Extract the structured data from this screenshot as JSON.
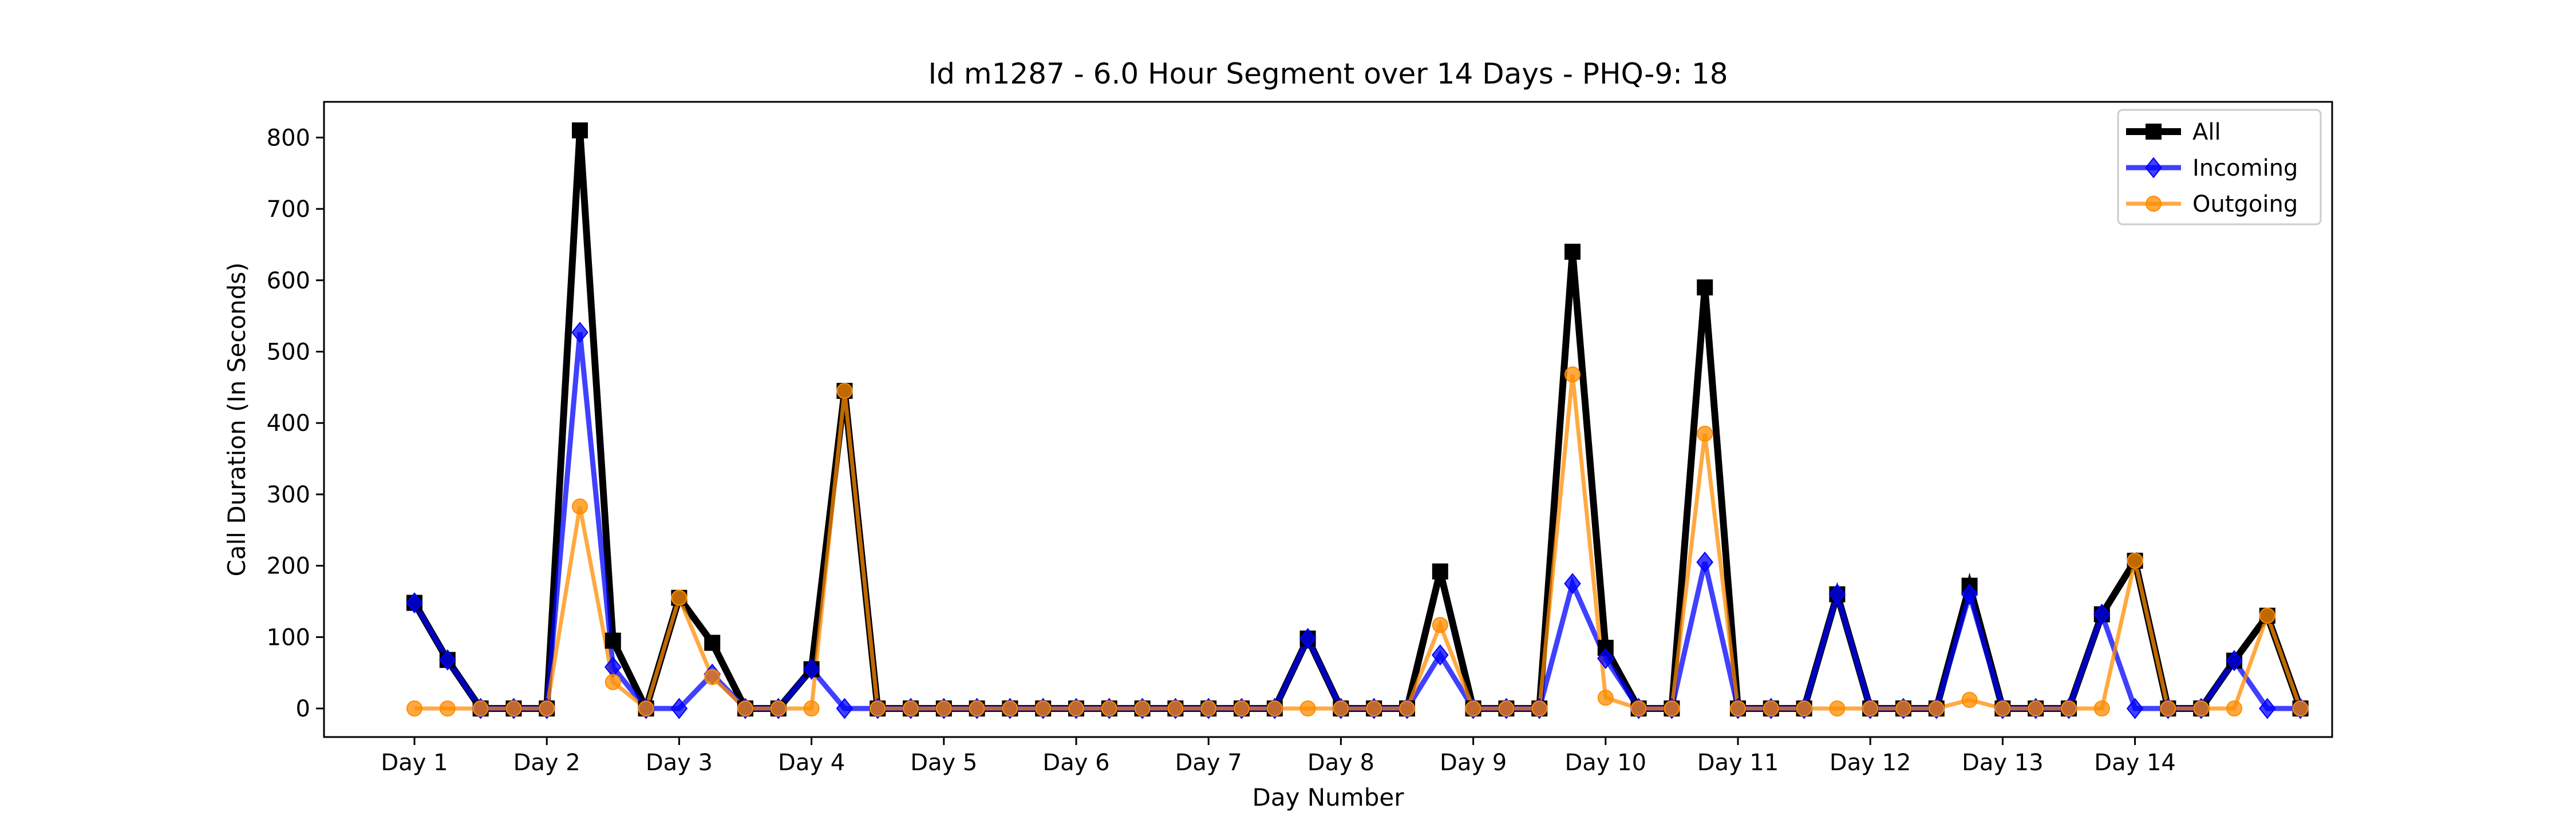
{
  "chart_data": {
    "type": "line",
    "title": "Id m1287 - 6.0 Hour Segment over 14 Days - PHQ-9: 18",
    "xlabel": "Day Number",
    "ylabel": "Call Duration (In Seconds)",
    "ylim": [
      -40,
      850
    ],
    "yticks": [
      0,
      100,
      200,
      300,
      400,
      500,
      600,
      700,
      800
    ],
    "xticks": [
      "Day 1",
      "Day 2",
      "Day 3",
      "Day 4",
      "Day 5",
      "Day 6",
      "Day 7",
      "Day 8",
      "Day 9",
      "Day 10",
      "Day 11",
      "Day 12",
      "Day 13",
      "Day 14"
    ],
    "points_per_day": 4,
    "legend_position": "top-right",
    "grid": false,
    "series": [
      {
        "name": "All",
        "color": "#000000",
        "marker": "square",
        "values": [
          148,
          68,
          0,
          0,
          0,
          810,
          95,
          0,
          155,
          92,
          0,
          0,
          55,
          445,
          0,
          0,
          0,
          0,
          0,
          0,
          0,
          0,
          0,
          0,
          0,
          0,
          0,
          98,
          0,
          0,
          0,
          192,
          0,
          0,
          0,
          640,
          85,
          0,
          0,
          590,
          0,
          0,
          0,
          160,
          0,
          0,
          0,
          172,
          0,
          0,
          0,
          132,
          207,
          0,
          0,
          67,
          130,
          0
        ]
      },
      {
        "name": "Incoming",
        "color": "#0000ff",
        "marker": "diamond",
        "values": [
          148,
          68,
          0,
          0,
          0,
          527,
          58,
          0,
          0,
          48,
          0,
          0,
          55,
          0,
          0,
          0,
          0,
          0,
          0,
          0,
          0,
          0,
          0,
          0,
          0,
          0,
          0,
          98,
          0,
          0,
          0,
          75,
          0,
          0,
          0,
          175,
          70,
          0,
          0,
          205,
          0,
          0,
          0,
          160,
          0,
          0,
          0,
          160,
          0,
          0,
          0,
          132,
          0,
          0,
          0,
          67,
          0,
          0
        ]
      },
      {
        "name": "Outgoing",
        "color": "#ff8c00",
        "marker": "circle",
        "values": [
          0,
          0,
          0,
          0,
          0,
          283,
          37,
          0,
          155,
          44,
          0,
          0,
          0,
          445,
          0,
          0,
          0,
          0,
          0,
          0,
          0,
          0,
          0,
          0,
          0,
          0,
          0,
          0,
          0,
          0,
          0,
          117,
          0,
          0,
          0,
          468,
          15,
          0,
          0,
          385,
          0,
          0,
          0,
          0,
          0,
          0,
          0,
          12,
          0,
          0,
          0,
          0,
          207,
          0,
          0,
          0,
          130,
          0
        ]
      }
    ]
  }
}
